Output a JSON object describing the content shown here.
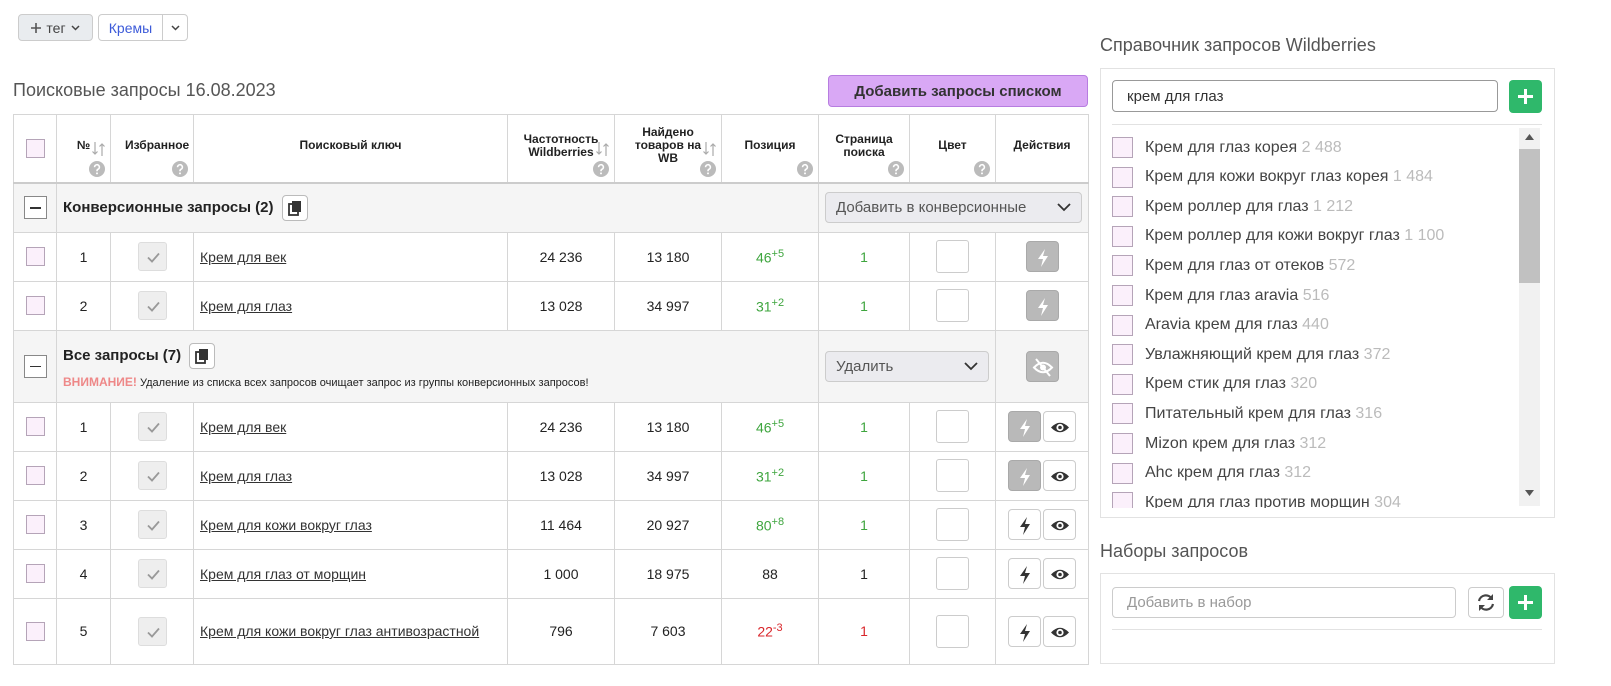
{
  "tags": {
    "add_tag": "тег",
    "active_tag": "Кремы"
  },
  "header": {
    "title": "Поисковые запросы 16.08.2023",
    "add_button": "Добавить запросы списком"
  },
  "table": {
    "columns": [
      {
        "label": "№",
        "sort": true,
        "help": true
      },
      {
        "label": "Избранное",
        "sort": false,
        "help": true
      },
      {
        "label": "Поисковый ключ",
        "sort": false,
        "help": false
      },
      {
        "label": "Частотность Wildberries",
        "sort": true,
        "help": true
      },
      {
        "label": "Найдено товаров на WB",
        "sort": true,
        "help": true
      },
      {
        "label": "Позиция",
        "sort": false,
        "help": true
      },
      {
        "label": "Страница поиска",
        "sort": false,
        "help": true
      },
      {
        "label": "Цвет",
        "sort": false,
        "help": true
      },
      {
        "label": "Действия",
        "sort": false,
        "help": false
      }
    ],
    "conversion_group": {
      "title": "Конверсионные запросы (2)",
      "select": "Добавить в конверсионные",
      "rows": [
        {
          "num": 1,
          "key": "Крем для век",
          "frequency": "24 236",
          "found": "13 180",
          "position": 46,
          "delta": "+5",
          "page": 1
        },
        {
          "num": 2,
          "key": "Крем для глаз",
          "frequency": "13 028",
          "found": "34 997",
          "position": 31,
          "delta": "+2",
          "page": 1
        }
      ]
    },
    "all_group": {
      "title": "Все запросы (7)",
      "warning": "ВНИМАНИЕ!",
      "warning_text": "Удаление из списка всех запросов очищает запрос из группы конверсионных запросов!",
      "select": "Удалить",
      "rows": [
        {
          "num": 1,
          "key": "Крем для век",
          "frequency": "24 236",
          "found": "13 180",
          "position": 46,
          "delta": "+5",
          "page": 1,
          "highlighted": true
        },
        {
          "num": 2,
          "key": "Крем для глаз",
          "frequency": "13 028",
          "found": "34 997",
          "position": 31,
          "delta": "+2",
          "page": 1,
          "highlighted": true
        },
        {
          "num": 3,
          "key": "Крем для кожи вокруг глаз",
          "frequency": "11 464",
          "found": "20 927",
          "position": 80,
          "delta": "+8",
          "page": 1,
          "highlighted": false
        },
        {
          "num": 4,
          "key": "Крем для глаз от морщин",
          "frequency": "1 000",
          "found": "18 975",
          "position": 88,
          "delta": null,
          "page": 1,
          "highlighted": false
        },
        {
          "num": 5,
          "key": "Крем для кожи вокруг глаз антивозрастной",
          "frequency": "796",
          "found": "7 603",
          "position": 22,
          "delta": "-3",
          "page": 1,
          "highlighted": false
        }
      ]
    }
  },
  "reference": {
    "title": "Справочник запросов Wildberries",
    "search": "крем для глаз",
    "items": [
      {
        "text": "Крем для глаз корея",
        "count": "2 488"
      },
      {
        "text": "Крем для кожи вокруг глаз корея",
        "count": "1 484"
      },
      {
        "text": "Крем роллер для глаз",
        "count": "1 212"
      },
      {
        "text": "Крем роллер для кожи вокруг глаз",
        "count": "1 100"
      },
      {
        "text": "Крем для глаз от отеков",
        "count": "572"
      },
      {
        "text": "Крем для глаз aravia",
        "count": "516"
      },
      {
        "text": "Aravia крем для глаз",
        "count": "440"
      },
      {
        "text": "Увлажняющий крем для глаз",
        "count": "372"
      },
      {
        "text": "Крем стик для глаз",
        "count": "320"
      },
      {
        "text": "Питательный крем для глаз",
        "count": "316"
      },
      {
        "text": "Mizon крем для глаз",
        "count": "312"
      },
      {
        "text": "Ahc крем для глаз",
        "count": "312"
      },
      {
        "text": "Крем для глаз против морщин",
        "count": "304"
      }
    ]
  },
  "sets": {
    "title": "Наборы запросов",
    "placeholder": "Добавить в набор"
  }
}
